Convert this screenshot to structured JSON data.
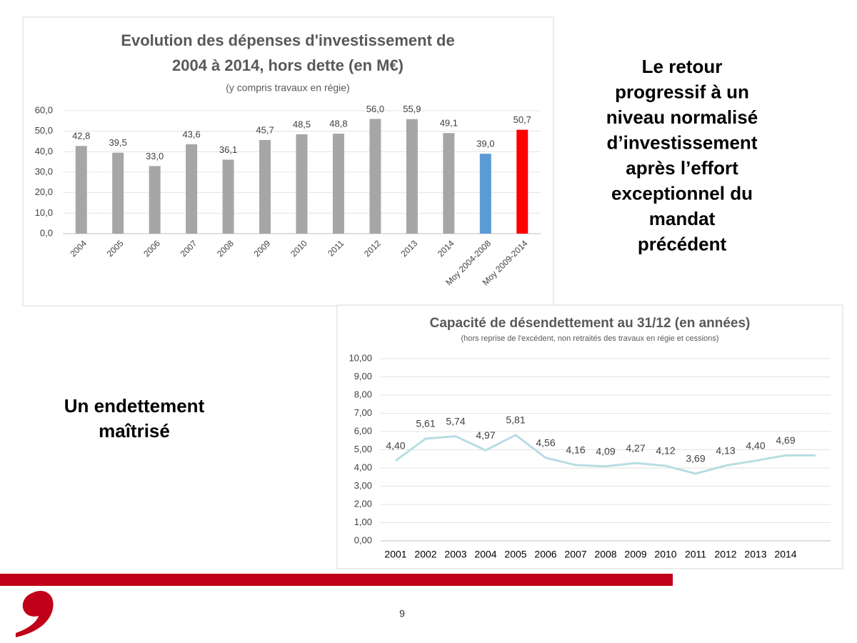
{
  "chart_data": [
    {
      "type": "bar",
      "title": "Evolution des dépenses d'investissement de 2004 à 2014, hors dette (en M€)",
      "subtitle": "(y compris travaux en régie)",
      "categories": [
        "2004",
        "2005",
        "2006",
        "2007",
        "2008",
        "2009",
        "2010",
        "2011",
        "2012",
        "2013",
        "2014",
        "Moy 2004-2008",
        "Moy 2009-2014"
      ],
      "values": [
        42.8,
        39.5,
        33.0,
        43.6,
        36.1,
        45.7,
        48.5,
        48.8,
        56.0,
        55.9,
        49.1,
        39.0,
        50.7
      ],
      "value_labels": [
        "42,8",
        "39,5",
        "33,0",
        "43,6",
        "36,1",
        "45,7",
        "48,5",
        "48,8",
        "56,0",
        "55,9",
        "49,1",
        "39,0",
        "50,7"
      ],
      "colors": [
        "#a6a6a6",
        "#a6a6a6",
        "#a6a6a6",
        "#a6a6a6",
        "#a6a6a6",
        "#a6a6a6",
        "#a6a6a6",
        "#a6a6a6",
        "#a6a6a6",
        "#a6a6a6",
        "#a6a6a6",
        "#5b9bd5",
        "#ff0000"
      ],
      "ylim": [
        0,
        60
      ],
      "yticks": [
        {
          "value": 0,
          "label": "0,0"
        },
        {
          "value": 10,
          "label": "10,0"
        },
        {
          "value": 20,
          "label": "20,0"
        },
        {
          "value": 30,
          "label": "30,0"
        },
        {
          "value": 40,
          "label": "40,0"
        },
        {
          "value": 50,
          "label": "50,0"
        },
        {
          "value": 60,
          "label": "60,0"
        }
      ],
      "grid": true
    },
    {
      "type": "line",
      "title": "Capacité de désendettement au 31/12 (en années)",
      "subtitle": "(hors reprise de l'excédent,  non retraités des travaux en régie et cessions)",
      "categories": [
        "2001",
        "2002",
        "2003",
        "2004",
        "2005",
        "2006",
        "2007",
        "2008",
        "2009",
        "2010",
        "2011",
        "2012",
        "2013",
        "2014",
        null
      ],
      "values": [
        4.4,
        5.61,
        5.74,
        4.97,
        5.81,
        4.56,
        4.16,
        4.09,
        4.27,
        4.12,
        3.69,
        4.13,
        4.4,
        4.69,
        4.69
      ],
      "value_labels": [
        "4,40",
        "5,61",
        "5,74",
        "4,97",
        "5,81",
        "4,56",
        "4,16",
        "4,09",
        "4,27",
        "4,12",
        "3,69",
        "4,13",
        "4,40",
        "4,69",
        null
      ],
      "color": "#b7dde3",
      "ylim": [
        0,
        10
      ],
      "yticks": [
        {
          "value": 0,
          "label": "0,00"
        },
        {
          "value": 1,
          "label": "1,00"
        },
        {
          "value": 2,
          "label": "2,00"
        },
        {
          "value": 3,
          "label": "3,00"
        },
        {
          "value": 4,
          "label": "4,00"
        },
        {
          "value": 5,
          "label": "5,00"
        },
        {
          "value": 6,
          "label": "6,00"
        },
        {
          "value": 7,
          "label": "7,00"
        },
        {
          "value": 8,
          "label": "8,00"
        },
        {
          "value": 9,
          "label": "9,00"
        },
        {
          "value": 10,
          "label": "10,00"
        }
      ],
      "grid": true
    }
  ],
  "right_text": [
    "Le retour",
    "progressif à un",
    "niveau normalisé",
    "d’investissement",
    "après l’effort",
    "exceptionnel du",
    "mandat",
    "précédent"
  ],
  "left_text": [
    "Un endettement",
    "maîtrisé"
  ],
  "page_number": "9"
}
